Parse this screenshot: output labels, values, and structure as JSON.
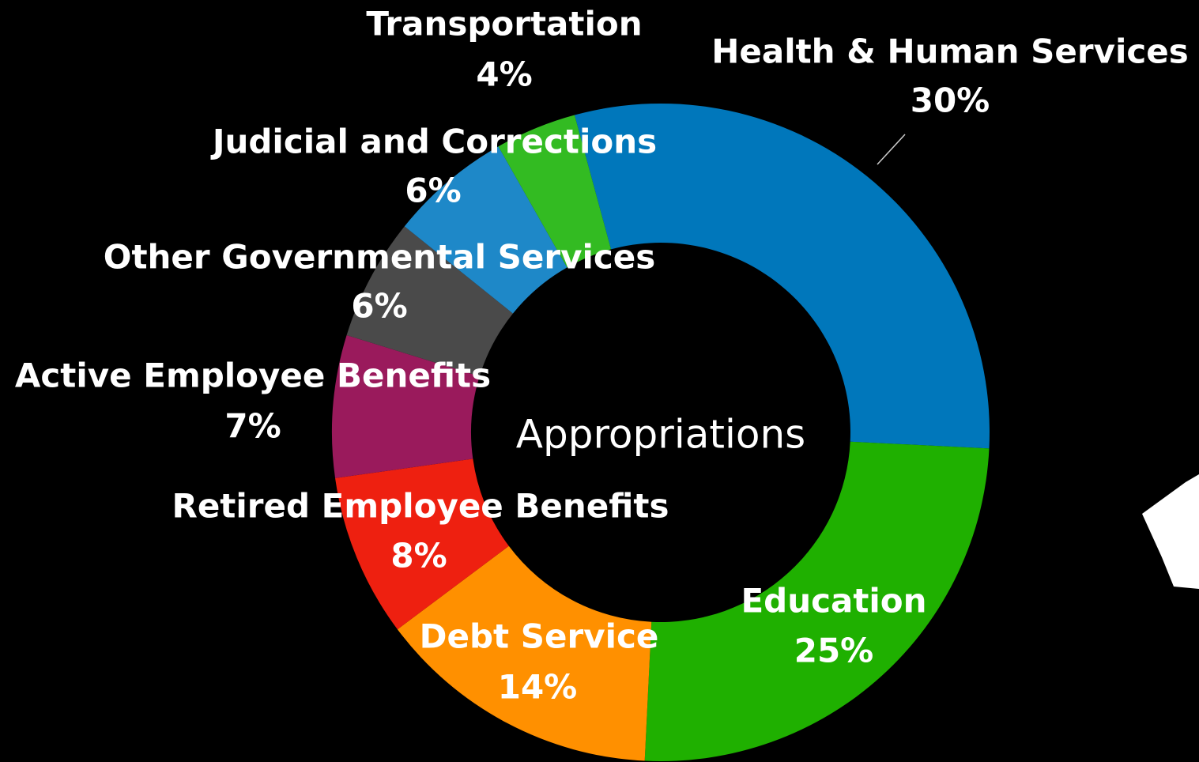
{
  "chart_data": {
    "type": "donut",
    "title": "Appropriations",
    "categories": [
      "Health & Human Services",
      "Education",
      "Debt Service",
      "Retired Employee Benefits",
      "Active Employee Benefits",
      "Other Governmental Services",
      "Judicial and Corrections",
      "Transportation"
    ],
    "values": [
      30,
      25,
      14,
      8,
      7,
      6,
      6,
      4
    ],
    "value_labels": [
      "30%",
      "25%",
      "14%",
      "8%",
      "7%",
      "6%",
      "6%",
      "4%"
    ],
    "colors": [
      "#0077bb",
      "#1fb000",
      "#ff9000",
      "#ee2010",
      "#9a1a5c",
      "#4a4a4a",
      "#1e88c8",
      "#33bb22"
    ]
  }
}
